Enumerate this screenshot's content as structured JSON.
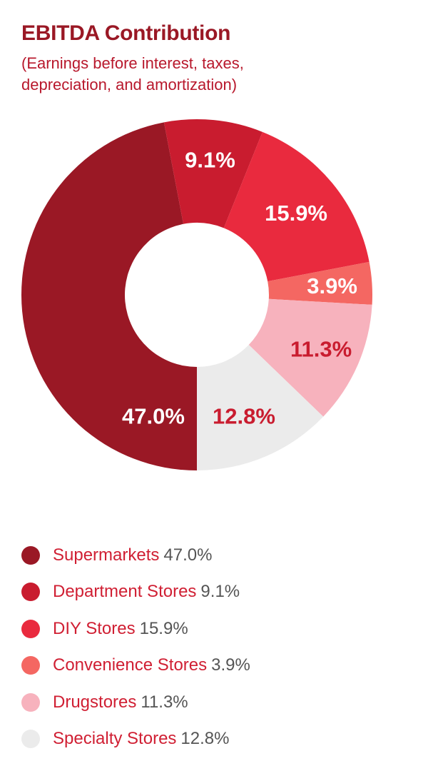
{
  "chart_data": {
    "type": "pie",
    "donut": true,
    "title": "EBITDA Contribution",
    "subtitle_lines": [
      "(Earnings before interest, taxes,",
      "depreciation, and amortization)"
    ],
    "series": [
      {
        "name": "Supermarkets",
        "value": 47.0,
        "label": "47.0%",
        "value_text": "47.0%",
        "color": "#9a1825",
        "label_color": "#ffffff"
      },
      {
        "name": "Department Stores",
        "value": 9.1,
        "label": "9.1%",
        "value_text": "9.1%",
        "color": "#c91c2f",
        "label_color": "#ffffff"
      },
      {
        "name": "DIY Stores",
        "value": 15.9,
        "label": "15.9%",
        "value_text": "15.9%",
        "color": "#e92a3e",
        "label_color": "#ffffff"
      },
      {
        "name": "Convenience Stores",
        "value": 3.9,
        "label": "3.9%",
        "value_text": "3.9%",
        "color": "#f46762",
        "label_color": "#ffffff"
      },
      {
        "name": "Drugstores",
        "value": 11.3,
        "label": "11.3%",
        "value_text": "11.3%",
        "color": "#f7b2bd",
        "label_color": "#c91c2f"
      },
      {
        "name": "Specialty Stores",
        "value": 12.8,
        "label": "12.8%",
        "value_text": "12.8%",
        "color": "#ebebeb",
        "label_color": "#c91c2f"
      }
    ],
    "legend_position": "bottom"
  }
}
